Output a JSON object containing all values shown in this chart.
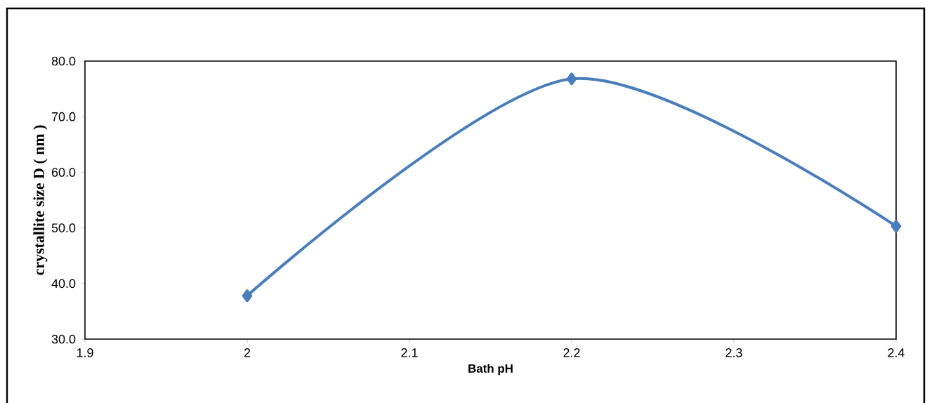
{
  "chart_data": {
    "type": "line",
    "xlabel": "Bath pH",
    "ylabel": "crystallite size D ( nm )",
    "x": [
      2,
      2.2,
      2.4
    ],
    "series": [
      {
        "color": "#4a7ebb",
        "values": [
          37.8,
          76.8,
          50.3
        ]
      }
    ],
    "xlim": [
      1.9,
      2.4
    ],
    "xticks": [
      1.9,
      2,
      2.1,
      2.2,
      2.3,
      2.4
    ],
    "ylim": [
      30,
      80
    ],
    "yticks": [
      {
        "value": 30,
        "label": "30.0"
      },
      {
        "value": 40,
        "label": "40.0"
      },
      {
        "value": 50,
        "label": "50.0"
      },
      {
        "value": 60,
        "label": "60.0"
      },
      {
        "value": 70,
        "label": "70.0"
      },
      {
        "value": 80,
        "label": "80.0"
      }
    ],
    "grid": false,
    "marker": "diamond",
    "line_style": "solid"
  }
}
